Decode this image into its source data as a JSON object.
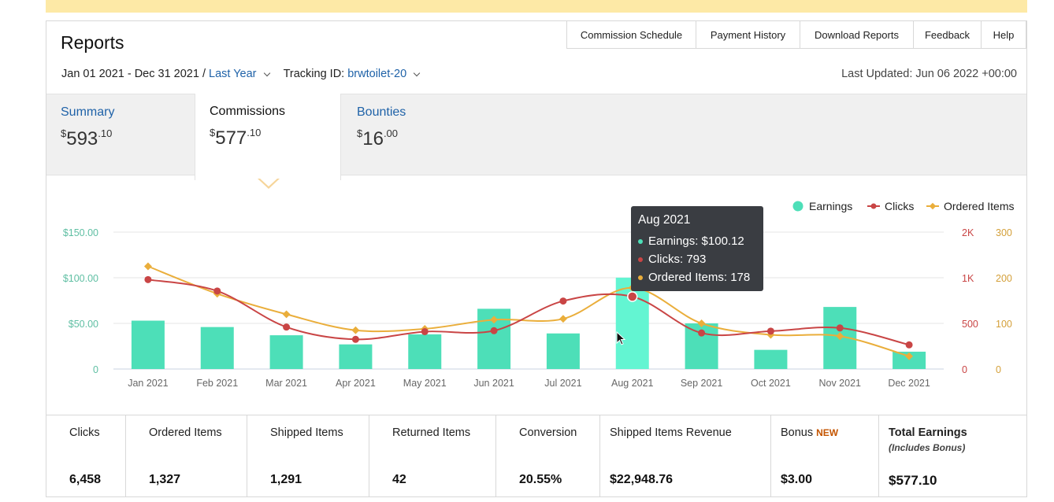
{
  "header": {
    "title": "Reports",
    "links": [
      "Commission Schedule",
      "Payment History",
      "Download Reports",
      "Feedback",
      "Help"
    ]
  },
  "filters": {
    "date_range": "Jan 01 2021 - Dec 31 2021 /",
    "period": "Last Year",
    "tracking_label": "Tracking ID:",
    "tracking_id": "brwtoilet-20",
    "last_updated": "Last Updated: Jun 06 2022 +00:00"
  },
  "tabs": [
    {
      "label": "Summary",
      "cur": "$",
      "whole": "593",
      "frac": ".10"
    },
    {
      "label": "Commissions",
      "cur": "$",
      "whole": "577",
      "frac": ".10"
    },
    {
      "label": "Bounties",
      "cur": "$",
      "whole": "16",
      "frac": ".00"
    }
  ],
  "colors": {
    "earnings": "#4ddfb8",
    "earnings_hover": "#63f5d2",
    "clicks": "#c94545",
    "ordered": "#eaae3b",
    "link": "#1f62a8"
  },
  "chart_data": {
    "type": "bar",
    "categories": [
      "Jan 2021",
      "Feb 2021",
      "Mar 2021",
      "Apr 2021",
      "May 2021",
      "Jun 2021",
      "Jul 2021",
      "Aug 2021",
      "Sep 2021",
      "Oct 2021",
      "Nov 2021",
      "Dec 2021"
    ],
    "series": [
      {
        "name": "Earnings",
        "type": "bar",
        "axis": "left",
        "values": [
          53,
          46,
          37,
          27,
          38,
          66,
          39,
          100.12,
          50,
          21,
          68,
          19
        ]
      },
      {
        "name": "Clicks",
        "type": "line",
        "axis": "right1",
        "values": [
          980,
          855,
          460,
          325,
          410,
          420,
          745,
          793,
          395,
          415,
          450,
          265
        ]
      },
      {
        "name": "Ordered Items",
        "type": "line",
        "axis": "right2",
        "values": [
          225,
          165,
          120,
          85,
          88,
          108,
          110,
          178,
          100,
          75,
          72,
          28
        ]
      }
    ],
    "left_axis": {
      "ticks": [
        "0",
        "$50.00",
        "$100.00",
        "$150.00"
      ],
      "range": [
        0,
        150
      ]
    },
    "right_axis_1": {
      "ticks": [
        "0",
        "500",
        "1K",
        "2K"
      ]
    },
    "right_axis_2": {
      "ticks": [
        "0",
        "100",
        "200",
        "300"
      ],
      "range": [
        0,
        300
      ]
    },
    "legend": [
      "Earnings",
      "Clicks",
      "Ordered Items"
    ],
    "legend_position": "top-right",
    "grid": true,
    "highlight_index": 7
  },
  "tooltip": {
    "title": "Aug 2021",
    "earnings": "Earnings: $100.12",
    "clicks": "Clicks: 793",
    "ordered": "Ordered Items: 178"
  },
  "stats": [
    {
      "label": "Clicks",
      "value": "6,458"
    },
    {
      "label": "Ordered Items",
      "value": "1,327"
    },
    {
      "label": "Shipped Items",
      "value": "1,291"
    },
    {
      "label": "Returned Items",
      "value": "42"
    },
    {
      "label": "Conversion",
      "value": "20.55%"
    },
    {
      "label": "Shipped Items Revenue",
      "value": "$22,948.76"
    },
    {
      "label": "Bonus",
      "badge": "NEW",
      "value": "$3.00"
    },
    {
      "label": "Total Earnings",
      "sub": "(Includes Bonus)",
      "value": "$577.10"
    }
  ]
}
